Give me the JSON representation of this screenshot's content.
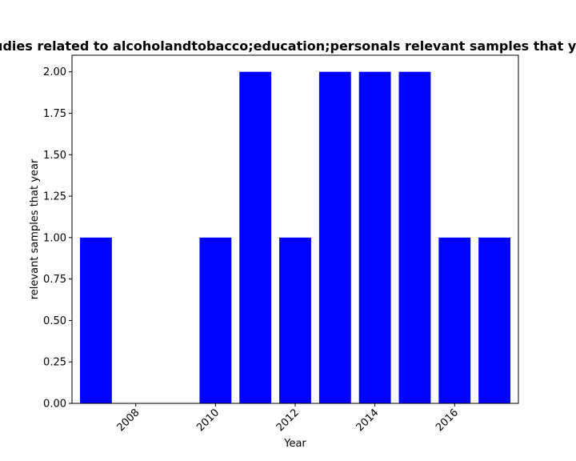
{
  "chart_data": {
    "type": "bar",
    "title": "Number of Studies related to alcoholandtobacco;education;personals relevant samples that year in each year",
    "xlabel": "Year",
    "ylabel": "relevant samples that year",
    "x": [
      2007,
      2008,
      2009,
      2010,
      2011,
      2012,
      2013,
      2014,
      2015,
      2016,
      2017
    ],
    "values": [
      1,
      0,
      0,
      1,
      2,
      1,
      2,
      2,
      2,
      1,
      1
    ],
    "xlim": [
      2006.4,
      2017.6
    ],
    "ylim": [
      0,
      2.1
    ],
    "xticks": [
      2008,
      2010,
      2012,
      2014,
      2016
    ],
    "yticks": [
      0.0,
      0.25,
      0.5,
      0.75,
      1.0,
      1.25,
      1.5,
      1.75,
      2.0
    ],
    "yticklabels": [
      "0.00",
      "0.25",
      "0.50",
      "0.75",
      "1.00",
      "1.25",
      "1.50",
      "1.75",
      "2.00"
    ],
    "bar_color": "#0000ff",
    "grid": false
  }
}
